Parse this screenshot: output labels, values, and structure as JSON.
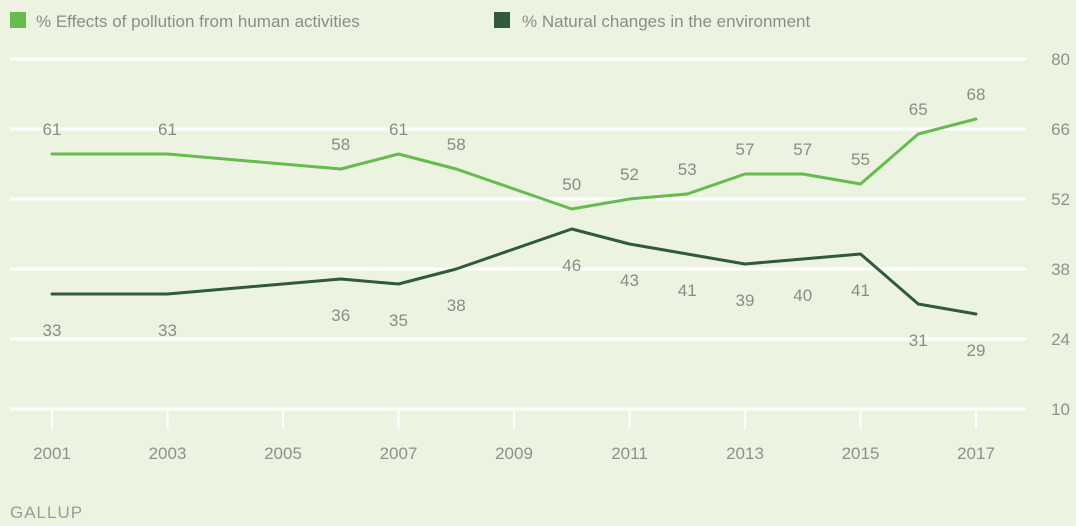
{
  "chart_data": {
    "type": "line",
    "legend_position": "top-left",
    "grid": true,
    "x": [
      2001,
      2003,
      2006,
      2007,
      2008,
      2010,
      2011,
      2012,
      2013,
      2014,
      2015,
      2016,
      2017
    ],
    "xticks": [
      "2001",
      "2003",
      "2005",
      "2007",
      "2009",
      "2011",
      "2013",
      "2015",
      "2017"
    ],
    "xlim": [
      2001,
      2017
    ],
    "yticks": [
      "10",
      "24",
      "38",
      "52",
      "66",
      "80"
    ],
    "ylim": [
      10,
      80
    ],
    "y_axis_side": "right",
    "series": [
      {
        "name": "% Effects of pollution from human activities",
        "color": "#66bb4e",
        "values": [
          61,
          61,
          58,
          61,
          58,
          50,
          52,
          53,
          57,
          57,
          55,
          65,
          68
        ]
      },
      {
        "name": "% Natural changes in the environment",
        "color": "#2f5a3c",
        "values": [
          33,
          33,
          36,
          35,
          38,
          46,
          43,
          41,
          39,
          40,
          41,
          31,
          29
        ]
      }
    ]
  },
  "source_label": "GALLUP",
  "colors": {
    "background": "#ecf3e1",
    "grid": "#ffffff",
    "tick_text": "#8f928c"
  }
}
